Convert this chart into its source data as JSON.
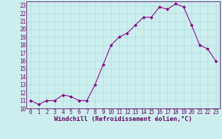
{
  "x": [
    0,
    1,
    2,
    3,
    4,
    5,
    6,
    7,
    8,
    9,
    10,
    11,
    12,
    13,
    14,
    15,
    16,
    17,
    18,
    19,
    20,
    21,
    22,
    23
  ],
  "y": [
    11,
    10.5,
    11,
    11,
    11.7,
    11.5,
    11,
    11,
    13,
    15.5,
    18,
    19,
    19.5,
    20.5,
    21.5,
    21.5,
    22.8,
    22.5,
    23.2,
    22.8,
    20.5,
    18,
    17.5,
    16
  ],
  "line_color": "#880088",
  "marker": "D",
  "marker_size": 2,
  "bg_color": "#cceeee",
  "grid_color": "#aadddd",
  "xlabel": "Windchill (Refroidissement éolien,°C)",
  "xlim": [
    -0.5,
    23.5
  ],
  "ylim": [
    10,
    23.5
  ],
  "yticks": [
    10,
    11,
    12,
    13,
    14,
    15,
    16,
    17,
    18,
    19,
    20,
    21,
    22,
    23
  ],
  "xticks": [
    0,
    1,
    2,
    3,
    4,
    5,
    6,
    7,
    8,
    9,
    10,
    11,
    12,
    13,
    14,
    15,
    16,
    17,
    18,
    19,
    20,
    21,
    22,
    23
  ],
  "tick_label_fontsize": 5.5,
  "xlabel_fontsize": 6.5,
  "text_color": "#660066",
  "spine_color": "#660066"
}
